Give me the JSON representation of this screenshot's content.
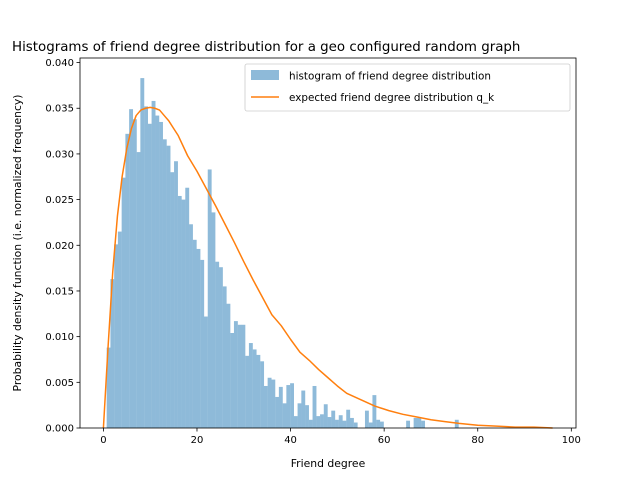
{
  "chart_data": {
    "type": "bar",
    "title": "Histograms of friend degree distribution for a geo configured random graph",
    "xlabel": "Friend degree",
    "ylabel": "Probability density function (i.e. normalized frequency)",
    "xlim": [
      -5,
      101
    ],
    "ylim": [
      0,
      0.0405
    ],
    "xticks": [
      0,
      20,
      40,
      60,
      80,
      100
    ],
    "yticks": [
      0.0,
      0.005,
      0.01,
      0.015,
      0.02,
      0.025,
      0.03,
      0.035,
      0.04
    ],
    "xtick_labels": [
      "0",
      "20",
      "40",
      "60",
      "80",
      "100"
    ],
    "ytick_labels": [
      "0.000",
      "0.005",
      "0.010",
      "0.015",
      "0.020",
      "0.025",
      "0.030",
      "0.035",
      "0.040"
    ],
    "legend_position": "top-right",
    "legend": [
      {
        "label": "histogram of friend degree distribution",
        "kind": "patch",
        "color": "#8ebad9"
      },
      {
        "label": "expected friend degree distribution q_k",
        "kind": "line",
        "color": "#ff7f0e"
      }
    ],
    "histogram": {
      "name": "histogram of friend degree distribution",
      "color": "#8ebad9",
      "bin_width": 0.8,
      "bin_start": 0.7,
      "values": [
        0.0088,
        0.0163,
        0.0201,
        0.0215,
        0.0274,
        0.0322,
        0.0349,
        0.0338,
        0.0302,
        0.0383,
        0.0352,
        0.0333,
        0.0358,
        0.0342,
        0.0335,
        0.0316,
        0.0309,
        0.028,
        0.0292,
        0.0254,
        0.025,
        0.0263,
        0.0223,
        0.0206,
        0.0196,
        0.0184,
        0.0122,
        0.0283,
        0.0236,
        0.0182,
        0.0176,
        0.0155,
        0.0136,
        0.0104,
        0.0117,
        0.0113,
        0.0113,
        0.0079,
        0.0093,
        0.0086,
        0.008,
        0.0073,
        0.0046,
        0.0055,
        0.0053,
        0.0034,
        0.0045,
        0.0027,
        0.0047,
        0.0049,
        0.0013,
        0.0027,
        0.0041,
        0.0025,
        0.0009,
        0.0046,
        0.0013,
        0.0015,
        0.0026,
        0.0012,
        0.0019,
        0.0009,
        0.0014,
        0.0008,
        0.002,
        0.0011,
        0.0006,
        0.0,
        0.0,
        0.0019,
        0.0006,
        0.0036,
        0.0009,
        0.0007,
        0.0,
        0.0,
        0.0,
        0.0,
        0.0,
        0.0,
        0.0008,
        0.0,
        0.0011,
        0.0011,
        0.0008,
        0.0,
        0.0,
        0.0,
        0.0,
        0.0,
        0.0,
        0.0,
        0.0,
        0.0009,
        0.0,
        0.0
      ]
    },
    "curve": {
      "name": "expected friend degree distribution q_k",
      "color": "#ff7f0e",
      "x": [
        0,
        1,
        2,
        3,
        4,
        5,
        6,
        7,
        8,
        9,
        10,
        11,
        12,
        13,
        14,
        15,
        16,
        18,
        20,
        22,
        24,
        26,
        28,
        30,
        32,
        34,
        36,
        38,
        40,
        42,
        44,
        46,
        48,
        50,
        52,
        55,
        58,
        61,
        64,
        67,
        70,
        73,
        76,
        80,
        84,
        88,
        92,
        96
      ],
      "y": [
        0.0,
        0.0089,
        0.0171,
        0.0232,
        0.0275,
        0.0306,
        0.0328,
        0.0342,
        0.0348,
        0.035,
        0.0351,
        0.035,
        0.0348,
        0.0342,
        0.0336,
        0.0328,
        0.032,
        0.0298,
        0.0281,
        0.0262,
        0.0243,
        0.0223,
        0.0203,
        0.0182,
        0.0162,
        0.0143,
        0.0124,
        0.0112,
        0.0097,
        0.0083,
        0.0074,
        0.0064,
        0.0055,
        0.0046,
        0.0038,
        0.0031,
        0.0024,
        0.0019,
        0.0015,
        0.0012,
        0.0009,
        0.0007,
        0.0005,
        0.0003,
        0.0002,
        0.0001,
        0.0001,
        0.0
      ]
    }
  }
}
